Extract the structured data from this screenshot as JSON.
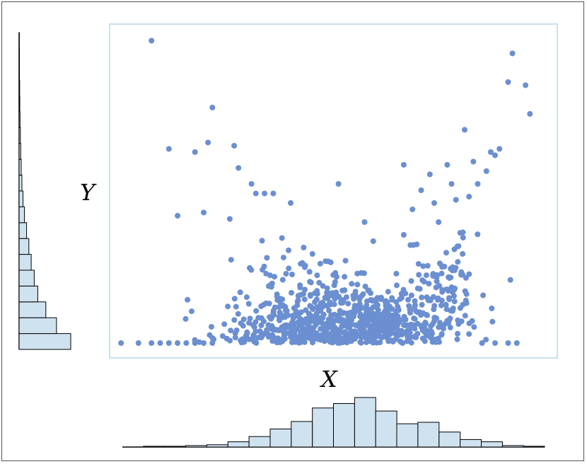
{
  "colors": {
    "point": "#6b8fd0",
    "bar_fill": "#cfe2ef",
    "bar_stroke": "#000000",
    "plot_border": "#c9e1ee",
    "frame": "#555555"
  },
  "chart_data": {
    "type": "scatter",
    "title": "",
    "xlabel": "X",
    "ylabel": "Y",
    "xlim": [
      0,
      1
    ],
    "ylim": [
      0,
      1
    ],
    "grid": false,
    "legend": "none",
    "marginals": {
      "x": {
        "type": "histogram",
        "position": "bottom",
        "bins": 20,
        "range": [
          0,
          1
        ]
      },
      "y": {
        "type": "histogram",
        "position": "left",
        "bins": 20,
        "range": [
          0,
          1
        ]
      }
    },
    "x_histogram_counts": [
      0,
      1,
      1,
      2,
      3,
      7,
      14,
      24,
      34,
      52,
      58,
      66,
      48,
      31,
      33,
      20,
      10,
      7,
      2,
      1
    ],
    "y_histogram_counts": [
      290,
      210,
      150,
      105,
      85,
      68,
      55,
      42,
      30,
      22,
      16,
      12,
      9,
      7,
      5,
      4,
      3,
      2,
      2,
      1
    ],
    "outliers": [
      {
        "x": 0.08,
        "y": 0.97
      },
      {
        "x": 0.12,
        "y": 0.63
      },
      {
        "x": 0.18,
        "y": 0.62
      },
      {
        "x": 0.21,
        "y": 0.65
      },
      {
        "x": 0.22,
        "y": 0.76
      },
      {
        "x": 0.27,
        "y": 0.64
      },
      {
        "x": 0.28,
        "y": 0.57
      },
      {
        "x": 0.31,
        "y": 0.52
      },
      {
        "x": 0.32,
        "y": 0.49
      },
      {
        "x": 0.34,
        "y": 0.49
      },
      {
        "x": 0.36,
        "y": 0.49
      },
      {
        "x": 0.4,
        "y": 0.46
      },
      {
        "x": 0.51,
        "y": 0.52
      },
      {
        "x": 0.14,
        "y": 0.42
      },
      {
        "x": 0.2,
        "y": 0.43
      },
      {
        "x": 0.26,
        "y": 0.41
      },
      {
        "x": 0.91,
        "y": 0.93
      },
      {
        "x": 0.94,
        "y": 0.83
      },
      {
        "x": 0.95,
        "y": 0.74
      },
      {
        "x": 0.9,
        "y": 0.84
      },
      {
        "x": 0.88,
        "y": 0.63
      },
      {
        "x": 0.86,
        "y": 0.62
      },
      {
        "x": 0.87,
        "y": 0.61
      },
      {
        "x": 0.8,
        "y": 0.69
      },
      {
        "x": 0.83,
        "y": 0.52
      },
      {
        "x": 0.85,
        "y": 0.56
      },
      {
        "x": 0.82,
        "y": 0.59
      },
      {
        "x": 0.76,
        "y": 0.58
      },
      {
        "x": 0.77,
        "y": 0.52
      },
      {
        "x": 0.73,
        "y": 0.46
      },
      {
        "x": 0.57,
        "y": 0.4
      },
      {
        "x": 0.59,
        "y": 0.34
      },
      {
        "x": 0.79,
        "y": 0.13
      },
      {
        "x": 0.76,
        "y": 0.09
      },
      {
        "x": 0.01,
        "y": 0.02
      },
      {
        "x": 0.05,
        "y": 0.02
      },
      {
        "x": 0.08,
        "y": 0.02
      },
      {
        "x": 0.1,
        "y": 0.02
      },
      {
        "x": 0.12,
        "y": 0.02
      },
      {
        "x": 0.14,
        "y": 0.02
      },
      {
        "x": 0.16,
        "y": 0.02
      },
      {
        "x": 0.18,
        "y": 0.02
      },
      {
        "x": 0.2,
        "y": 0.02
      },
      {
        "x": 0.22,
        "y": 0.02
      },
      {
        "x": 0.84,
        "y": 0.02
      },
      {
        "x": 0.87,
        "y": 0.02
      },
      {
        "x": 0.92,
        "y": 0.02
      },
      {
        "x": 0.9,
        "y": 0.02
      },
      {
        "x": 0.66,
        "y": 0.58
      },
      {
        "x": 0.7,
        "y": 0.5
      },
      {
        "x": 0.72,
        "y": 0.55
      },
      {
        "x": 0.68,
        "y": 0.44
      },
      {
        "x": 0.74,
        "y": 0.4
      },
      {
        "x": 0.81,
        "y": 0.48
      },
      {
        "x": 0.78,
        "y": 0.47
      },
      {
        "x": 0.43,
        "y": 0.32
      },
      {
        "x": 0.38,
        "y": 0.35
      },
      {
        "x": 0.45,
        "y": 0.3
      },
      {
        "x": 0.66,
        "y": 0.36
      },
      {
        "x": 0.69,
        "y": 0.33
      }
    ],
    "cluster": {
      "count": 900,
      "x_center": 0.5,
      "x_spread": 0.13,
      "y_floor": 0.02,
      "y_decay": 0.085,
      "correlated_arm": {
        "x_from": 0.55,
        "x_to": 0.82,
        "y_from": 0.05,
        "y_to": 0.4
      }
    },
    "seed": 7
  },
  "labels": {
    "x_axis": "X",
    "y_axis": "Y"
  }
}
